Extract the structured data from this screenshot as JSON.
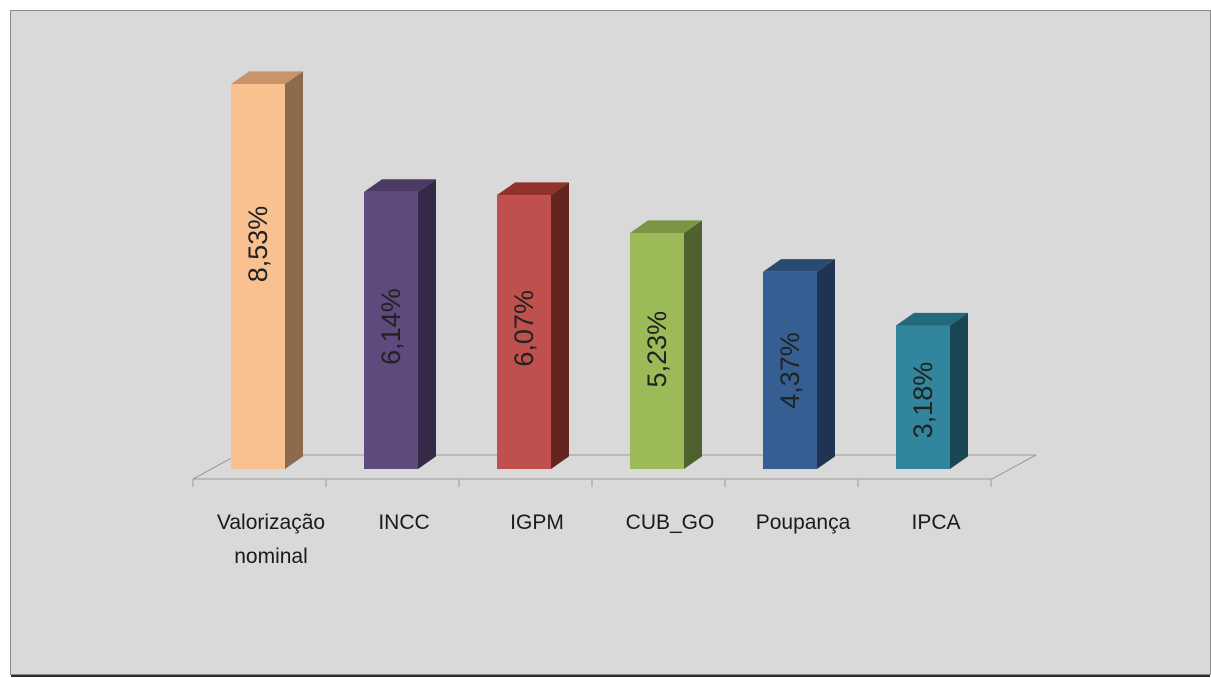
{
  "chart_data": {
    "type": "bar",
    "style": "3d-column",
    "title": "",
    "xlabel": "",
    "ylabel": "",
    "ylim": [
      0,
      8.53
    ],
    "grid": false,
    "legend": "none",
    "categories": [
      [
        "Valorização",
        "nominal"
      ],
      [
        "INCC"
      ],
      [
        "IGPM"
      ],
      [
        "CUB_GO"
      ],
      [
        "Poupança"
      ],
      [
        "IPCA"
      ]
    ],
    "values": [
      8.53,
      6.14,
      6.07,
      5.23,
      4.37,
      3.18
    ],
    "value_labels": [
      "8,53%",
      "6,14%",
      "6,07%",
      "5,23%",
      "4,37%",
      "3,18%"
    ],
    "colors": [
      {
        "front": "#f9c090",
        "side": "#8e6a4c",
        "top": "#c9946a"
      },
      {
        "front": "#5e4a7d",
        "side": "#342a48",
        "top": "#4a3a64"
      },
      {
        "front": "#c0504d",
        "side": "#64241f",
        "top": "#93312c"
      },
      {
        "front": "#9bbb59",
        "side": "#4f612e",
        "top": "#7a9645"
      },
      {
        "front": "#355f92",
        "side": "#1f3453",
        "top": "#284a73"
      },
      {
        "front": "#31859c",
        "side": "#1a4653",
        "top": "#256a7c"
      }
    ],
    "background_color": "#d9d9d9"
  }
}
